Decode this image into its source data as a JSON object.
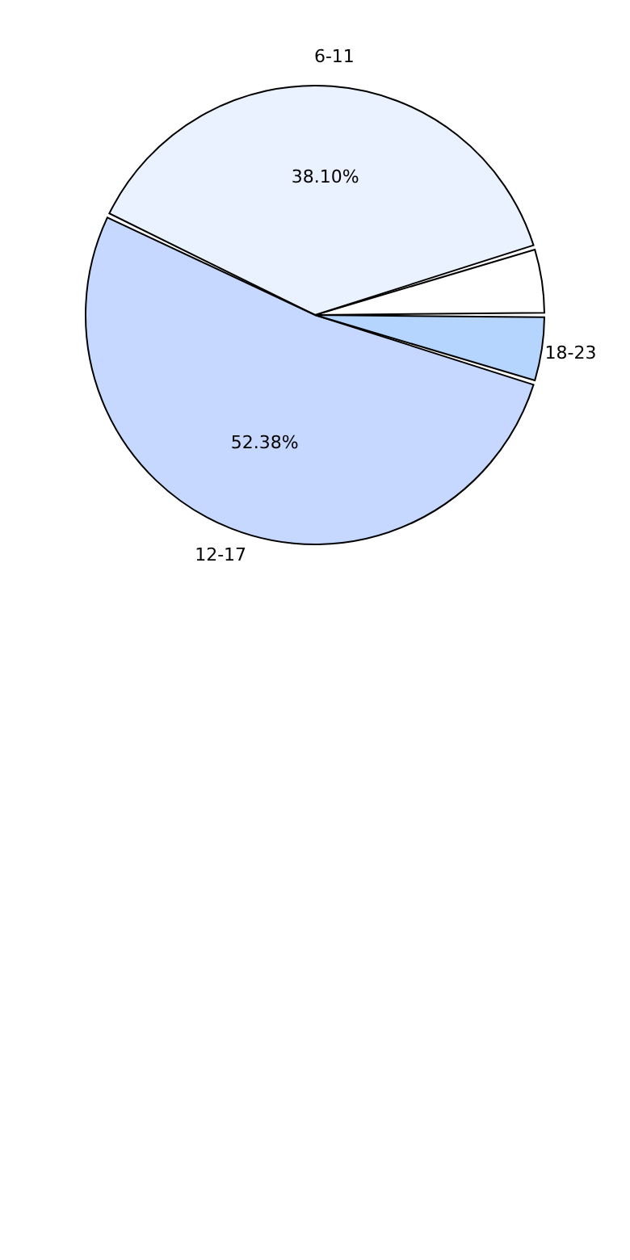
{
  "chart_data": {
    "type": "pie",
    "categories": [
      null,
      "6-11",
      "12-17",
      "18-23"
    ],
    "values": [
      4.76,
      38.1,
      52.38,
      4.76
    ],
    "colors": [
      "#ffffff",
      "#eaf1ff",
      "#c6d8ff",
      "#b5d5ff"
    ],
    "value_labels": [
      null,
      "38.10%",
      "52.38%",
      null
    ]
  }
}
